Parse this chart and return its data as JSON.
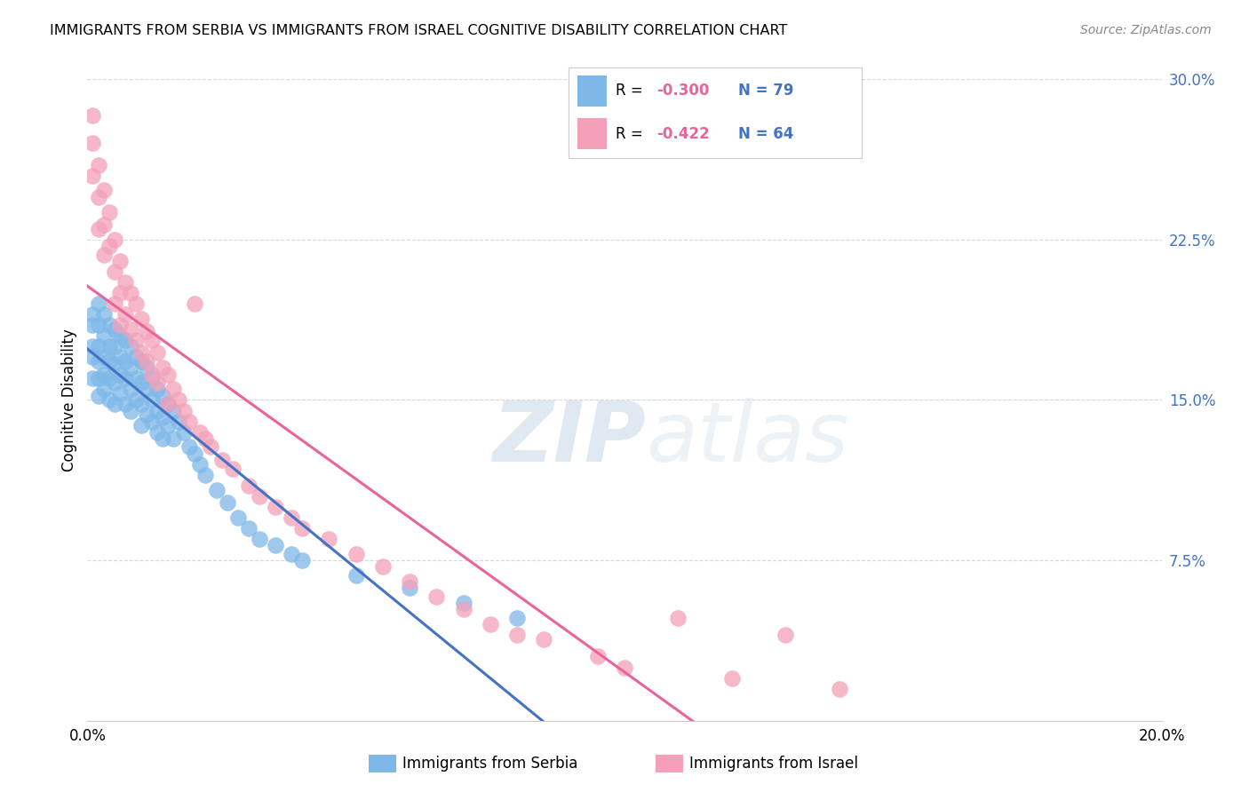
{
  "title": "IMMIGRANTS FROM SERBIA VS IMMIGRANTS FROM ISRAEL COGNITIVE DISABILITY CORRELATION CHART",
  "source": "Source: ZipAtlas.com",
  "xlabel_serbia": "Immigrants from Serbia",
  "xlabel_israel": "Immigrants from Israel",
  "ylabel": "Cognitive Disability",
  "xlim": [
    0.0,
    0.2
  ],
  "ylim": [
    0.0,
    0.3
  ],
  "serbia_color": "#7EB8E8",
  "israel_color": "#F4A0B8",
  "serbia_line_color": "#4472C4",
  "israel_line_color": "#E8649A",
  "serbia_R": -0.3,
  "serbia_N": 79,
  "israel_R": -0.422,
  "israel_N": 64,
  "serbia_scatter_x": [
    0.001,
    0.001,
    0.001,
    0.001,
    0.001,
    0.002,
    0.002,
    0.002,
    0.002,
    0.002,
    0.002,
    0.003,
    0.003,
    0.003,
    0.003,
    0.003,
    0.004,
    0.004,
    0.004,
    0.004,
    0.004,
    0.005,
    0.005,
    0.005,
    0.005,
    0.005,
    0.006,
    0.006,
    0.006,
    0.006,
    0.007,
    0.007,
    0.007,
    0.007,
    0.008,
    0.008,
    0.008,
    0.008,
    0.009,
    0.009,
    0.009,
    0.01,
    0.01,
    0.01,
    0.01,
    0.011,
    0.011,
    0.011,
    0.012,
    0.012,
    0.012,
    0.013,
    0.013,
    0.013,
    0.014,
    0.014,
    0.014,
    0.015,
    0.015,
    0.016,
    0.016,
    0.017,
    0.018,
    0.019,
    0.02,
    0.021,
    0.022,
    0.024,
    0.026,
    0.028,
    0.03,
    0.032,
    0.035,
    0.038,
    0.04,
    0.05,
    0.06,
    0.07,
    0.08
  ],
  "serbia_scatter_y": [
    0.19,
    0.185,
    0.175,
    0.17,
    0.16,
    0.195,
    0.185,
    0.175,
    0.168,
    0.16,
    0.152,
    0.19,
    0.18,
    0.17,
    0.162,
    0.155,
    0.185,
    0.175,
    0.168,
    0.16,
    0.15,
    0.183,
    0.175,
    0.167,
    0.158,
    0.148,
    0.18,
    0.17,
    0.162,
    0.153,
    0.178,
    0.168,
    0.16,
    0.148,
    0.175,
    0.165,
    0.155,
    0.145,
    0.17,
    0.16,
    0.15,
    0.168,
    0.158,
    0.148,
    0.138,
    0.165,
    0.155,
    0.143,
    0.16,
    0.15,
    0.14,
    0.155,
    0.145,
    0.135,
    0.152,
    0.142,
    0.132,
    0.148,
    0.138,
    0.145,
    0.132,
    0.14,
    0.135,
    0.128,
    0.125,
    0.12,
    0.115,
    0.108,
    0.102,
    0.095,
    0.09,
    0.085,
    0.082,
    0.078,
    0.075,
    0.068,
    0.062,
    0.055,
    0.048
  ],
  "israel_scatter_x": [
    0.001,
    0.001,
    0.001,
    0.002,
    0.002,
    0.002,
    0.003,
    0.003,
    0.003,
    0.004,
    0.004,
    0.005,
    0.005,
    0.005,
    0.006,
    0.006,
    0.006,
    0.007,
    0.007,
    0.008,
    0.008,
    0.009,
    0.009,
    0.01,
    0.01,
    0.011,
    0.011,
    0.012,
    0.012,
    0.013,
    0.013,
    0.014,
    0.015,
    0.015,
    0.016,
    0.017,
    0.018,
    0.019,
    0.02,
    0.021,
    0.022,
    0.023,
    0.025,
    0.027,
    0.03,
    0.032,
    0.035,
    0.038,
    0.04,
    0.045,
    0.05,
    0.055,
    0.06,
    0.065,
    0.07,
    0.075,
    0.08,
    0.085,
    0.095,
    0.1,
    0.11,
    0.12,
    0.13,
    0.14
  ],
  "israel_scatter_y": [
    0.283,
    0.27,
    0.255,
    0.26,
    0.245,
    0.23,
    0.248,
    0.232,
    0.218,
    0.238,
    0.222,
    0.225,
    0.21,
    0.195,
    0.215,
    0.2,
    0.185,
    0.205,
    0.19,
    0.2,
    0.183,
    0.195,
    0.178,
    0.188,
    0.172,
    0.182,
    0.168,
    0.178,
    0.162,
    0.172,
    0.158,
    0.165,
    0.162,
    0.148,
    0.155,
    0.15,
    0.145,
    0.14,
    0.195,
    0.135,
    0.132,
    0.128,
    0.122,
    0.118,
    0.11,
    0.105,
    0.1,
    0.095,
    0.09,
    0.085,
    0.078,
    0.072,
    0.065,
    0.058,
    0.052,
    0.045,
    0.04,
    0.038,
    0.03,
    0.025,
    0.048,
    0.02,
    0.04,
    0.015
  ],
  "watermark_zip": "ZIP",
  "watermark_atlas": "atlas",
  "background_color": "#ffffff",
  "grid_color": "#d8d8d8"
}
